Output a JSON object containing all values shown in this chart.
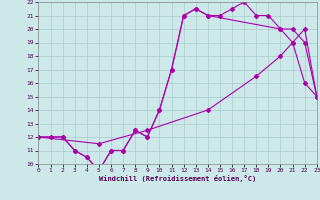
{
  "xlabel": "Windchill (Refroidissement éolien,°C)",
  "bg_color": "#cce8e8",
  "grid_color": "#aacccc",
  "line_color": "#aa00aa",
  "xmin": 0,
  "xmax": 23,
  "ymin": 10,
  "ymax": 22,
  "series1_x": [
    0,
    1,
    2,
    3,
    4,
    5,
    6,
    7,
    8,
    9,
    10,
    11,
    12,
    13,
    14,
    15,
    16,
    17,
    18,
    19,
    20,
    21,
    22,
    23
  ],
  "series1_y": [
    12,
    12,
    12,
    11,
    10.5,
    9.5,
    11,
    11,
    12.5,
    12,
    14,
    17,
    21,
    21.5,
    21,
    21,
    21.5,
    22,
    21,
    21,
    20,
    19,
    16,
    15
  ],
  "series2_x": [
    0,
    2,
    3,
    4,
    5,
    6,
    7,
    8,
    9,
    10,
    11,
    12,
    13,
    14,
    20,
    21,
    22,
    23
  ],
  "series2_y": [
    12,
    12,
    11,
    10.5,
    9.5,
    11,
    11,
    12.5,
    12,
    14,
    17,
    21,
    21.5,
    21,
    20,
    20,
    19,
    15
  ],
  "series3_x": [
    0,
    5,
    9,
    14,
    18,
    20,
    21,
    22,
    23
  ],
  "series3_y": [
    12,
    11.5,
    12.5,
    14,
    16.5,
    18,
    19,
    20,
    15
  ]
}
